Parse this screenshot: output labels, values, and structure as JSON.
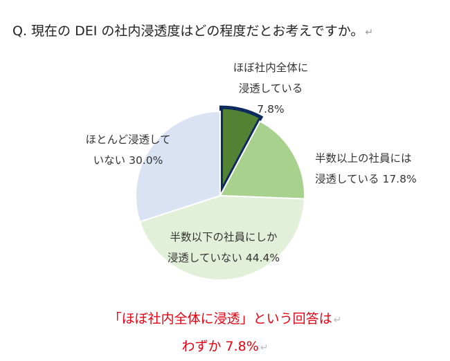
{
  "question": "Q. 現在の DEI の社内浸透度はどの程度だとお考えですか。",
  "return_mark": "↵",
  "chart_data": {
    "type": "pie",
    "title": "",
    "slices": [
      {
        "label_lines": [
          "ほぼ社内全体に",
          "浸透している",
          "7.8%"
        ],
        "value": 7.8,
        "color": "#548235",
        "border": "#0d2a5e",
        "exploded": true
      },
      {
        "label_lines": [
          "半数以上の社員には",
          "浸透している 17.8%"
        ],
        "value": 17.8,
        "color": "#a9d18e"
      },
      {
        "label_lines": [
          "半数以下の社員にしか",
          "浸透していない 44.4%"
        ],
        "value": 44.4,
        "color": "#e2efd9"
      },
      {
        "label_lines": [
          "ほとんど浸透して",
          "いない 30.0%"
        ],
        "value": 30.0,
        "color": "#dae3f3"
      }
    ]
  },
  "summary": {
    "line1": "「ほぼ社内全体に浸透」という回答は",
    "line2": "わずか 7.8%"
  }
}
